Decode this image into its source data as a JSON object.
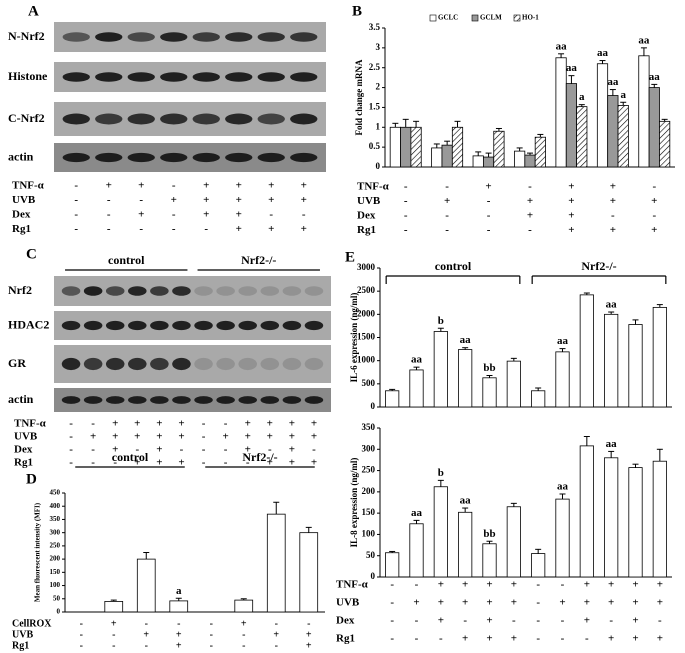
{
  "panel_A": {
    "label": "A",
    "rows": [
      "N-Nrf2",
      "Histone",
      "C-Nrf2",
      "actin"
    ],
    "treatments": [
      {
        "name": "TNF-α",
        "signs": [
          "-",
          "+",
          "+",
          "-",
          "+",
          "+",
          "+",
          "+"
        ]
      },
      {
        "name": "UVB",
        "signs": [
          "-",
          "-",
          "-",
          "+",
          "+",
          "+",
          "+",
          "+"
        ]
      },
      {
        "name": "Dex",
        "signs": [
          "-",
          "-",
          "+",
          "-",
          "+",
          "+",
          "-",
          "-"
        ]
      },
      {
        "name": "Rg1",
        "signs": [
          "-",
          "-",
          "-",
          "-",
          "-",
          "+",
          "+",
          "+"
        ]
      }
    ]
  },
  "panel_C": {
    "label": "C",
    "groups": [
      "control",
      "Nrf2-/-"
    ],
    "rows": [
      "Nrf2",
      "HDAC2",
      "GR",
      "actin"
    ],
    "treatments": [
      {
        "name": "TNF-α",
        "signs": [
          "-",
          "-",
          "+",
          "+",
          "+",
          "+",
          "-",
          "-",
          "+",
          "+",
          "+",
          "+"
        ]
      },
      {
        "name": "UVB",
        "signs": [
          "-",
          "+",
          "+",
          "+",
          "+",
          "+",
          "-",
          "+",
          "+",
          "+",
          "+",
          "+"
        ]
      },
      {
        "name": "Dex",
        "signs": [
          "-",
          "-",
          "+",
          "-",
          "+",
          "-",
          "-",
          "-",
          "+",
          "-",
          "+",
          "-"
        ]
      },
      {
        "name": "Rg1",
        "signs": [
          "-",
          "-",
          "-",
          "+",
          "+",
          "+",
          "-",
          "-",
          "-",
          "+",
          "+",
          "+"
        ]
      }
    ]
  },
  "chart_data": [
    {
      "type": "bar",
      "label": "B",
      "ylabel": "Fold change mRNA",
      "ylim": [
        0,
        3.5
      ],
      "yticks": [
        0,
        0.5,
        1,
        1.5,
        2,
        2.5,
        3,
        3.5
      ],
      "legend": "top",
      "series": [
        {
          "name": "GCLC",
          "color": "#ffffff",
          "values": [
            1.0,
            0.48,
            0.28,
            0.4,
            2.75,
            2.6,
            2.8
          ],
          "errors": [
            0.1,
            0.1,
            0.1,
            0.08,
            0.1,
            0.08,
            0.2
          ],
          "annotations": [
            null,
            null,
            null,
            null,
            "aa",
            "aa",
            "aa"
          ]
        },
        {
          "name": "GCLM",
          "color": "#999999",
          "values": [
            1.0,
            0.55,
            0.25,
            0.3,
            2.1,
            1.8,
            2.0
          ],
          "errors": [
            0.2,
            0.1,
            0.1,
            0.05,
            0.2,
            0.15,
            0.08
          ],
          "annotations": [
            null,
            null,
            null,
            null,
            "aa",
            "aa",
            "aa"
          ]
        },
        {
          "name": "HO-1",
          "color": "#ffffff",
          "pattern": "hatch",
          "values": [
            1.0,
            1.0,
            0.9,
            0.75,
            1.52,
            1.55,
            1.15
          ],
          "errors": [
            0.15,
            0.15,
            0.07,
            0.07,
            0.05,
            0.08,
            0.05
          ],
          "annotations": [
            null,
            null,
            null,
            null,
            "a",
            "a",
            null
          ]
        }
      ],
      "treatments": [
        {
          "name": "TNF-α",
          "signs": [
            "-",
            "-",
            "+",
            "-",
            "+",
            "+",
            "-"
          ]
        },
        {
          "name": "UVB",
          "signs": [
            "-",
            "+",
            "-",
            "+",
            "+",
            "+",
            "+"
          ]
        },
        {
          "name": "Dex",
          "signs": [
            "-",
            "-",
            "-",
            "+",
            "+",
            "-",
            "-"
          ]
        },
        {
          "name": "Rg1",
          "signs": [
            "-",
            "-",
            "-",
            "-",
            "+",
            "+",
            "+"
          ]
        }
      ]
    },
    {
      "type": "bar",
      "label": "D",
      "ylabel": "Mean fluorescent intensity (MFI)",
      "groups": [
        "control",
        "Nrf2-/-"
      ],
      "ylim": [
        0,
        450
      ],
      "yticks": [
        0,
        50,
        100,
        150,
        200,
        250,
        300,
        350,
        400,
        450
      ],
      "color": "#ffffff",
      "values": [
        null,
        40,
        200,
        42,
        null,
        45,
        370,
        300
      ],
      "errors": [
        null,
        5,
        25,
        10,
        null,
        5,
        45,
        20
      ],
      "annotations": [
        null,
        null,
        null,
        "a",
        null,
        null,
        null,
        null
      ],
      "treatments": [
        {
          "name": "CellROX",
          "signs": [
            "-",
            "+",
            "-",
            "-",
            "-",
            "+",
            "-",
            "-"
          ]
        },
        {
          "name": "UVB",
          "signs": [
            "-",
            "-",
            "+",
            "+",
            "-",
            "-",
            "+",
            "+"
          ]
        },
        {
          "name": "Rg1",
          "signs": [
            "-",
            "-",
            "-",
            "+",
            "-",
            "-",
            "-",
            "+"
          ]
        }
      ]
    },
    {
      "type": "bar",
      "label": "E",
      "ylabel": "IL-6 expression (ng/ml)",
      "groups": [
        "control",
        "Nrf2-/-"
      ],
      "ylim": [
        0,
        3000
      ],
      "yticks": [
        0,
        500,
        1000,
        1500,
        2000,
        2500,
        3000
      ],
      "color": "#ffffff",
      "values": [
        350,
        800,
        1630,
        1240,
        630,
        990,
        350,
        1190,
        2420,
        2000,
        1780,
        2150
      ],
      "errors": [
        30,
        60,
        70,
        40,
        50,
        60,
        60,
        70,
        40,
        50,
        100,
        60
      ],
      "annotations": [
        null,
        "aa",
        "b",
        "aa",
        "bb",
        null,
        null,
        "aa",
        null,
        "aa",
        null,
        null
      ]
    },
    {
      "type": "bar",
      "ylabel": "IL-8 expression (ng/ml)",
      "ylim": [
        0,
        350
      ],
      "yticks": [
        0,
        50,
        100,
        150,
        200,
        250,
        300,
        350
      ],
      "color": "#ffffff",
      "values": [
        57,
        125,
        212,
        152,
        78,
        165,
        55,
        183,
        308,
        280,
        257,
        272
      ],
      "errors": [
        3,
        8,
        15,
        10,
        6,
        8,
        10,
        12,
        22,
        15,
        8,
        28
      ],
      "annotations": [
        null,
        "aa",
        "b",
        "aa",
        "bb",
        null,
        null,
        "aa",
        null,
        "aa",
        null,
        null
      ],
      "treatments": [
        {
          "name": "TNF-α",
          "signs": [
            "-",
            "-",
            "+",
            "+",
            "+",
            "+",
            "-",
            "-",
            "+",
            "+",
            "+",
            "+"
          ]
        },
        {
          "name": "UVB",
          "signs": [
            "-",
            "+",
            "+",
            "+",
            "+",
            "+",
            "-",
            "+",
            "+",
            "+",
            "+",
            "+"
          ]
        },
        {
          "name": "Dex",
          "signs": [
            "-",
            "-",
            "+",
            "-",
            "+",
            "-",
            "-",
            "-",
            "+",
            "-",
            "+",
            "-"
          ]
        },
        {
          "name": "Rg1",
          "signs": [
            "-",
            "-",
            "-",
            "+",
            "+",
            "+",
            "-",
            "-",
            "-",
            "+",
            "+",
            "+"
          ]
        }
      ]
    }
  ]
}
